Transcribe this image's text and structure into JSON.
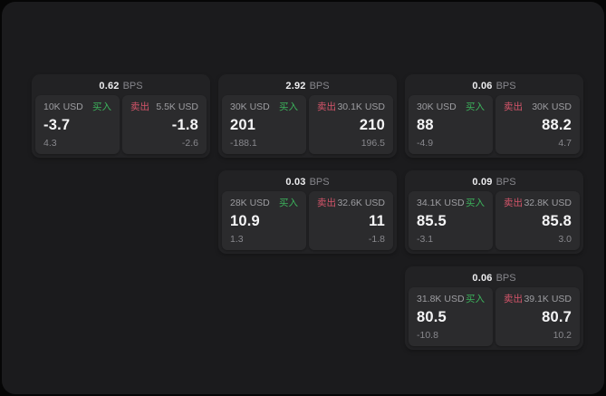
{
  "labels": {
    "bps_suffix": "BPS",
    "buy": "买入",
    "sell": "卖出"
  },
  "colors": {
    "background": "#060606",
    "surface": "#1b1b1d",
    "card": "#222224",
    "tile": "#2b2b2d",
    "buy_green": "#3cb35c",
    "sell_red": "#d5556a",
    "text_primary": "#f5f5f6",
    "text_muted": "#9d9da1"
  },
  "cards": [
    {
      "bps": "0.62",
      "buy": {
        "notional": "10K USD",
        "price": "-3.7",
        "delta": "4.3"
      },
      "sell": {
        "notional": "5.5K USD",
        "price": "-1.8",
        "delta": "-2.6"
      }
    },
    {
      "bps": "2.92",
      "buy": {
        "notional": "30K USD",
        "price": "201",
        "delta": "-188.1"
      },
      "sell": {
        "notional": "30.1K USD",
        "price": "210",
        "delta": "196.5"
      }
    },
    {
      "bps": "0.06",
      "buy": {
        "notional": "30K USD",
        "price": "88",
        "delta": "-4.9"
      },
      "sell": {
        "notional": "30K USD",
        "price": "88.2",
        "delta": "4.7"
      }
    },
    {
      "bps": "0.03",
      "buy": {
        "notional": "28K USD",
        "price": "10.9",
        "delta": "1.3"
      },
      "sell": {
        "notional": "32.6K USD",
        "price": "11",
        "delta": "-1.8"
      }
    },
    {
      "bps": "0.09",
      "buy": {
        "notional": "34.1K USD",
        "price": "85.5",
        "delta": "-3.1"
      },
      "sell": {
        "notional": "32.8K USD",
        "price": "85.8",
        "delta": "3.0"
      }
    },
    {
      "bps": "0.06",
      "buy": {
        "notional": "31.8K USD",
        "price": "80.5",
        "delta": "-10.8"
      },
      "sell": {
        "notional": "39.1K USD",
        "price": "80.7",
        "delta": "10.2"
      }
    }
  ]
}
